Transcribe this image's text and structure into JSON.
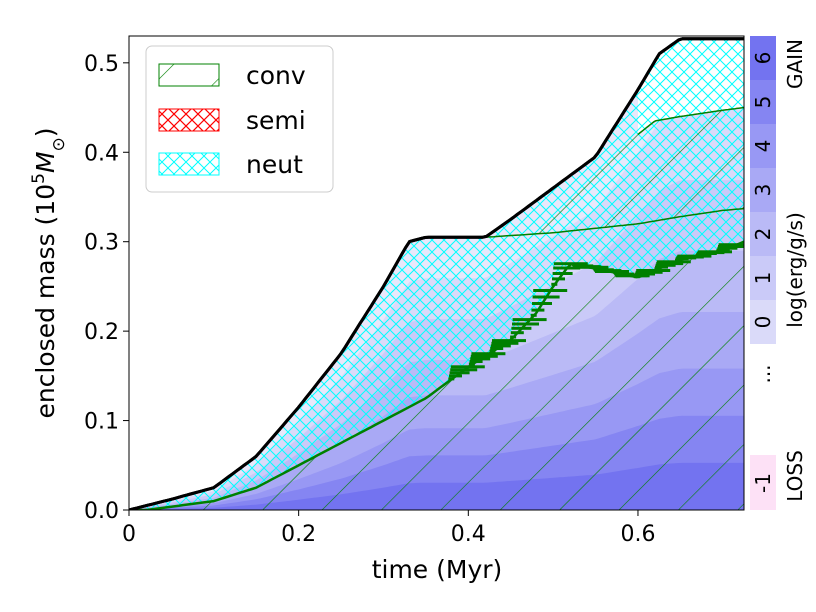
{
  "chart_data": {
    "type": "area",
    "title": "",
    "xlabel": "time (Myr)",
    "ylabel_main": "enclosed mass (10",
    "ylabel_exp": "5",
    "ylabel_tail": "M",
    "ylabel_sub": "⊙",
    "ylabel_close": ")",
    "xlim": [
      0,
      0.725
    ],
    "ylim": [
      0,
      0.53
    ],
    "xticks": [
      0,
      0.2,
      0.4,
      0.6
    ],
    "xtick_labels": [
      "0",
      "0.2",
      "0.4",
      "0.6"
    ],
    "yticks": [
      0,
      0.1,
      0.2,
      0.3,
      0.4,
      0.5
    ],
    "ytick_labels": [
      "0.0",
      "0.1",
      "0.2",
      "0.3",
      "0.4",
      "0.5"
    ],
    "series": [
      {
        "name": "total mass",
        "x": [
          0,
          0.05,
          0.1,
          0.15,
          0.2,
          0.25,
          0.3,
          0.33,
          0.35,
          0.42,
          0.45,
          0.5,
          0.55,
          0.6,
          0.625,
          0.65,
          0.725
        ],
        "y": [
          0,
          0.012,
          0.025,
          0.06,
          0.115,
          0.175,
          0.25,
          0.3,
          0.305,
          0.305,
          0.325,
          0.36,
          0.395,
          0.47,
          0.51,
          0.527,
          0.527
        ]
      },
      {
        "name": "conv upper boundary",
        "x": [
          0.02,
          0.1,
          0.15,
          0.2,
          0.25,
          0.3,
          0.35,
          0.4,
          0.45,
          0.48,
          0.5,
          0.52,
          0.55,
          0.6,
          0.65,
          0.7,
          0.725
        ],
        "y": [
          0,
          0.01,
          0.025,
          0.05,
          0.075,
          0.1,
          0.125,
          0.16,
          0.19,
          0.22,
          0.25,
          0.275,
          0.27,
          0.26,
          0.28,
          0.29,
          0.3
        ]
      },
      {
        "name": "inner shell boundary",
        "x": [
          0.42,
          0.5,
          0.6,
          0.65,
          0.7,
          0.725
        ],
        "y": [
          0.305,
          0.31,
          0.32,
          0.328,
          0.335,
          0.337
        ]
      },
      {
        "name": "outer shell boundary",
        "x": [
          0.6,
          0.62,
          0.65,
          0.7,
          0.725
        ],
        "y": [
          0.42,
          0.435,
          0.44,
          0.447,
          0.45
        ]
      }
    ],
    "legend": {
      "placement": "top-left",
      "entries": [
        {
          "label": "conv",
          "color": "#008000",
          "pattern": "hatch-diagonal"
        },
        {
          "label": "semi",
          "color": "#ff0000",
          "pattern": "hatch-cross"
        },
        {
          "label": "neut",
          "color": "#00ffff",
          "pattern": "hatch-cross"
        }
      ]
    },
    "colorbar": {
      "label": "log(erg/g/s)",
      "top_label": "GAIN",
      "bottom_label": "LOSS",
      "gain_ticks": [
        "0",
        "1",
        "2",
        "3",
        "4",
        "5",
        "6"
      ],
      "ellipsis": "...",
      "loss_ticks": [
        "-1"
      ],
      "colors": [
        "#e8e8fb",
        "#dadaf9",
        "#cacaf8",
        "#babaf6",
        "#a9a9f5",
        "#9898f4",
        "#8585f2",
        "#7373f0"
      ],
      "loss_color": "#fde1f6"
    }
  }
}
